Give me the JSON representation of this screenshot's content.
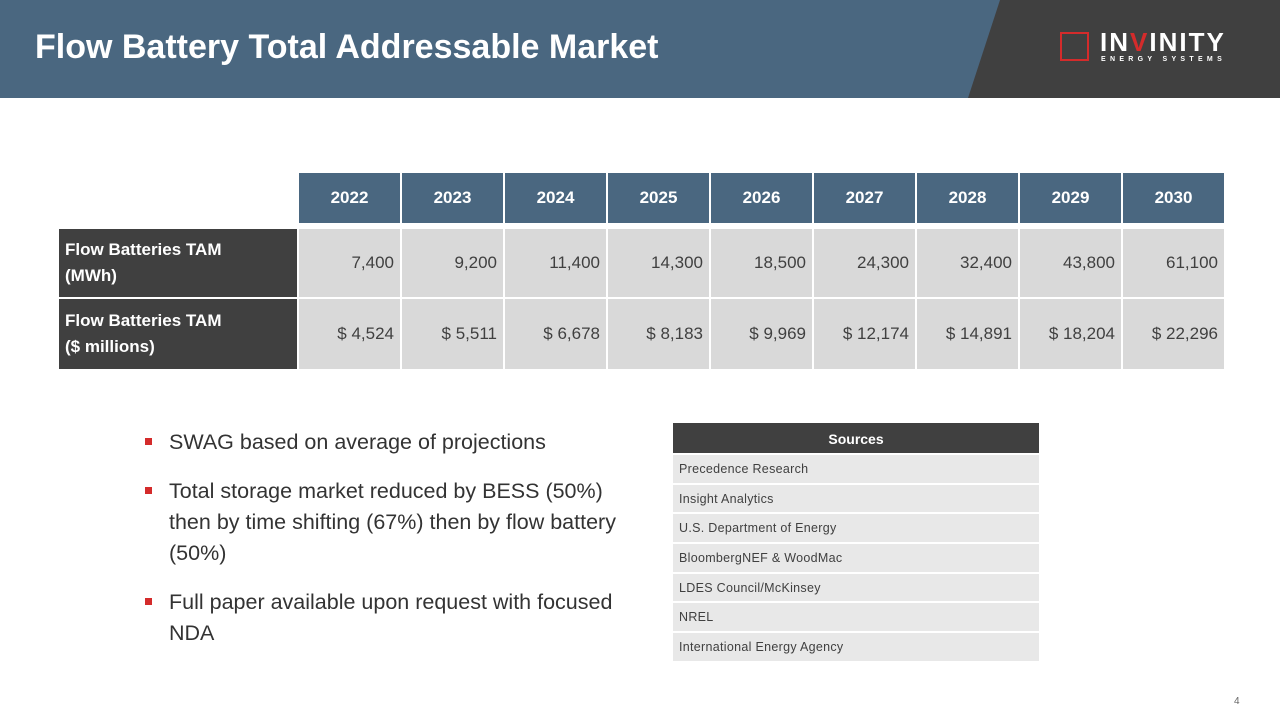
{
  "header": {
    "title": "Flow Battery Total Addressable Market",
    "logo": {
      "name_pre": "IN",
      "name_accent": "V",
      "name_post": "INITY",
      "subtitle": "ENERGY SYSTEMS"
    }
  },
  "table": {
    "years": [
      "2022",
      "2023",
      "2024",
      "2025",
      "2026",
      "2027",
      "2028",
      "2029",
      "2030"
    ],
    "rows": [
      {
        "label_line1": "Flow Batteries TAM",
        "label_line2": "(MWh)",
        "values": [
          "7,400",
          "9,200",
          "11,400",
          "14,300",
          "18,500",
          "24,300",
          "32,400",
          "43,800",
          "61,100"
        ]
      },
      {
        "label_line1": "Flow Batteries TAM",
        "label_line2": "($ millions)",
        "values": [
          "$ 4,524",
          "$ 5,511",
          "$ 6,678",
          "$ 8,183",
          "$ 9,969",
          "$ 12,174",
          "$ 14,891",
          "$ 18,204",
          "$ 22,296"
        ]
      }
    ]
  },
  "bullets": [
    "SWAG based on average of projections",
    "Total storage market reduced by BESS (50%) then by time shifting (67%) then by flow battery (50%)",
    "Full paper available upon request with focused NDA"
  ],
  "sources": {
    "heading": "Sources",
    "items": [
      "Precedence Research",
      "Insight Analytics",
      "U.S. Department of Energy",
      "BloombergNEF & WoodMac",
      "LDES Council/McKinsey",
      "NREL",
      "International Energy Agency"
    ]
  },
  "page_number": "4",
  "colors": {
    "header_blue": "#4a6780",
    "dark_gray": "#404040",
    "accent_red": "#d42b2b",
    "cell_gray": "#d9d9d9"
  }
}
